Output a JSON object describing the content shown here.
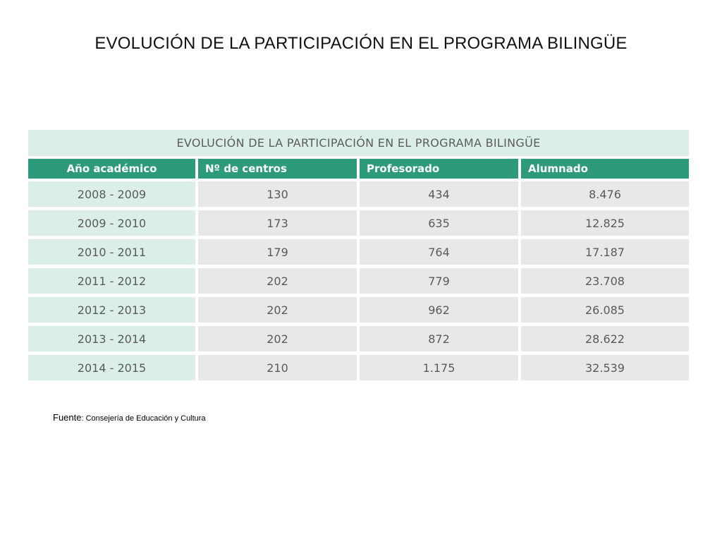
{
  "slide": {
    "title": "EVOLUCIÓN DE LA PARTICIPACIÓN EN EL PROGRAMA BILINGÜE"
  },
  "table": {
    "caption": "EVOLUCIÓN DE LA PARTICIPACIÓN EN EL PROGRAMA BILINGÜE",
    "columns": [
      "Año académico",
      "Nº de centros",
      "Profesorado",
      "Alumnado"
    ],
    "rows": [
      [
        "2008 - 2009",
        "130",
        "434",
        "8.476"
      ],
      [
        "2009 - 2010",
        "173",
        "635",
        "12.825"
      ],
      [
        "2010 - 2011",
        "179",
        "764",
        "17.187"
      ],
      [
        "2011 - 2012",
        "202",
        "779",
        "23.708"
      ],
      [
        "2012 - 2013",
        "202",
        "962",
        "26.085"
      ],
      [
        "2013 - 2014",
        "202",
        "872",
        "28.622"
      ],
      [
        "2014 - 2015",
        "210",
        "1.175",
        "32.539"
      ]
    ]
  },
  "source": {
    "label": "Fuente",
    "text": ": Consejería de Educación y Cultura"
  },
  "colors": {
    "header_green": "#2e9a7c",
    "light_green": "#dcefe7",
    "cell_gray": "#e8e8e8"
  }
}
